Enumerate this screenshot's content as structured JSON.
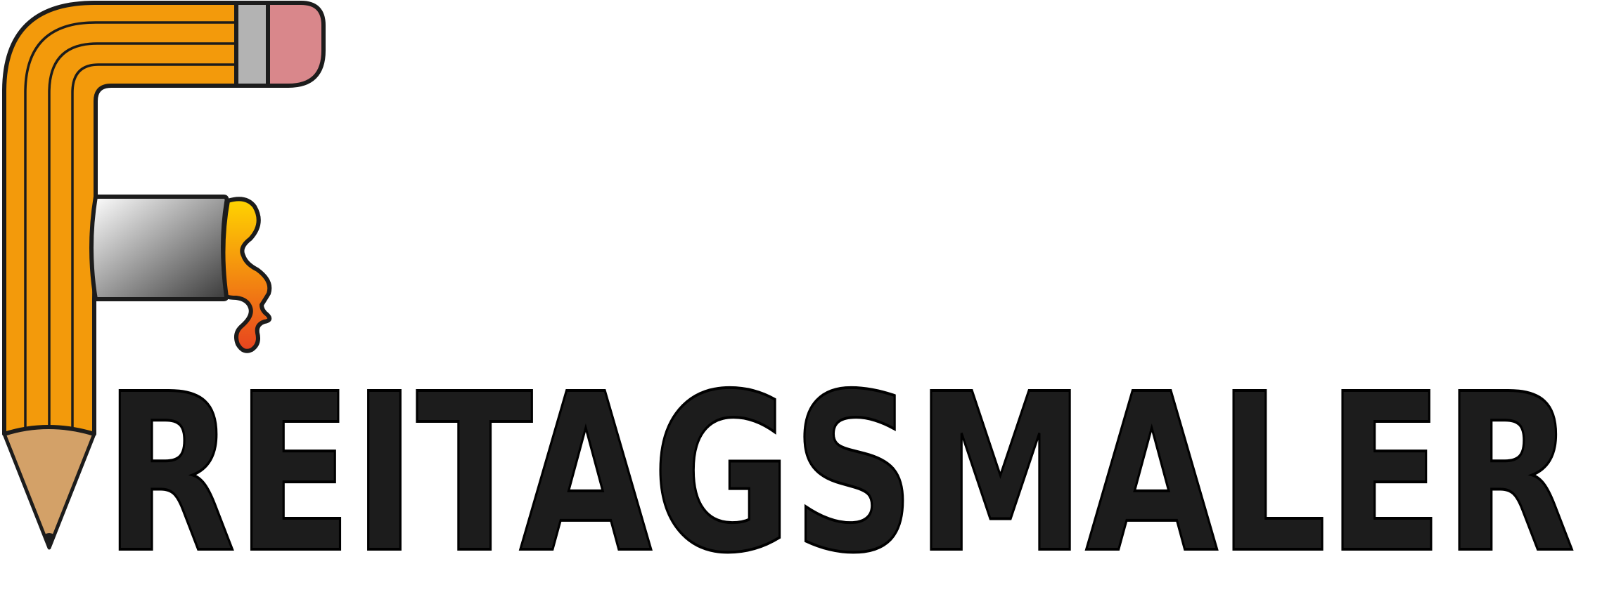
{
  "logo": {
    "wordmark": "REITAGSMALER",
    "colors": {
      "pencil_body": "#F39A0B",
      "pencil_tip_wood": "#D3A168",
      "outline": "#1C1C1C",
      "ferrule": "#B3B3B3",
      "eraser": "#D9878B",
      "roller_light": "#FFFFFF",
      "roller_dark": "#3A3A3A",
      "paint_top": "#FFD400",
      "paint_bottom": "#E8431F",
      "wordmark_fill": "#1C1C1C"
    },
    "icons": [
      "pencil-icon",
      "paint-roller-icon",
      "paint-drip-icon"
    ]
  }
}
